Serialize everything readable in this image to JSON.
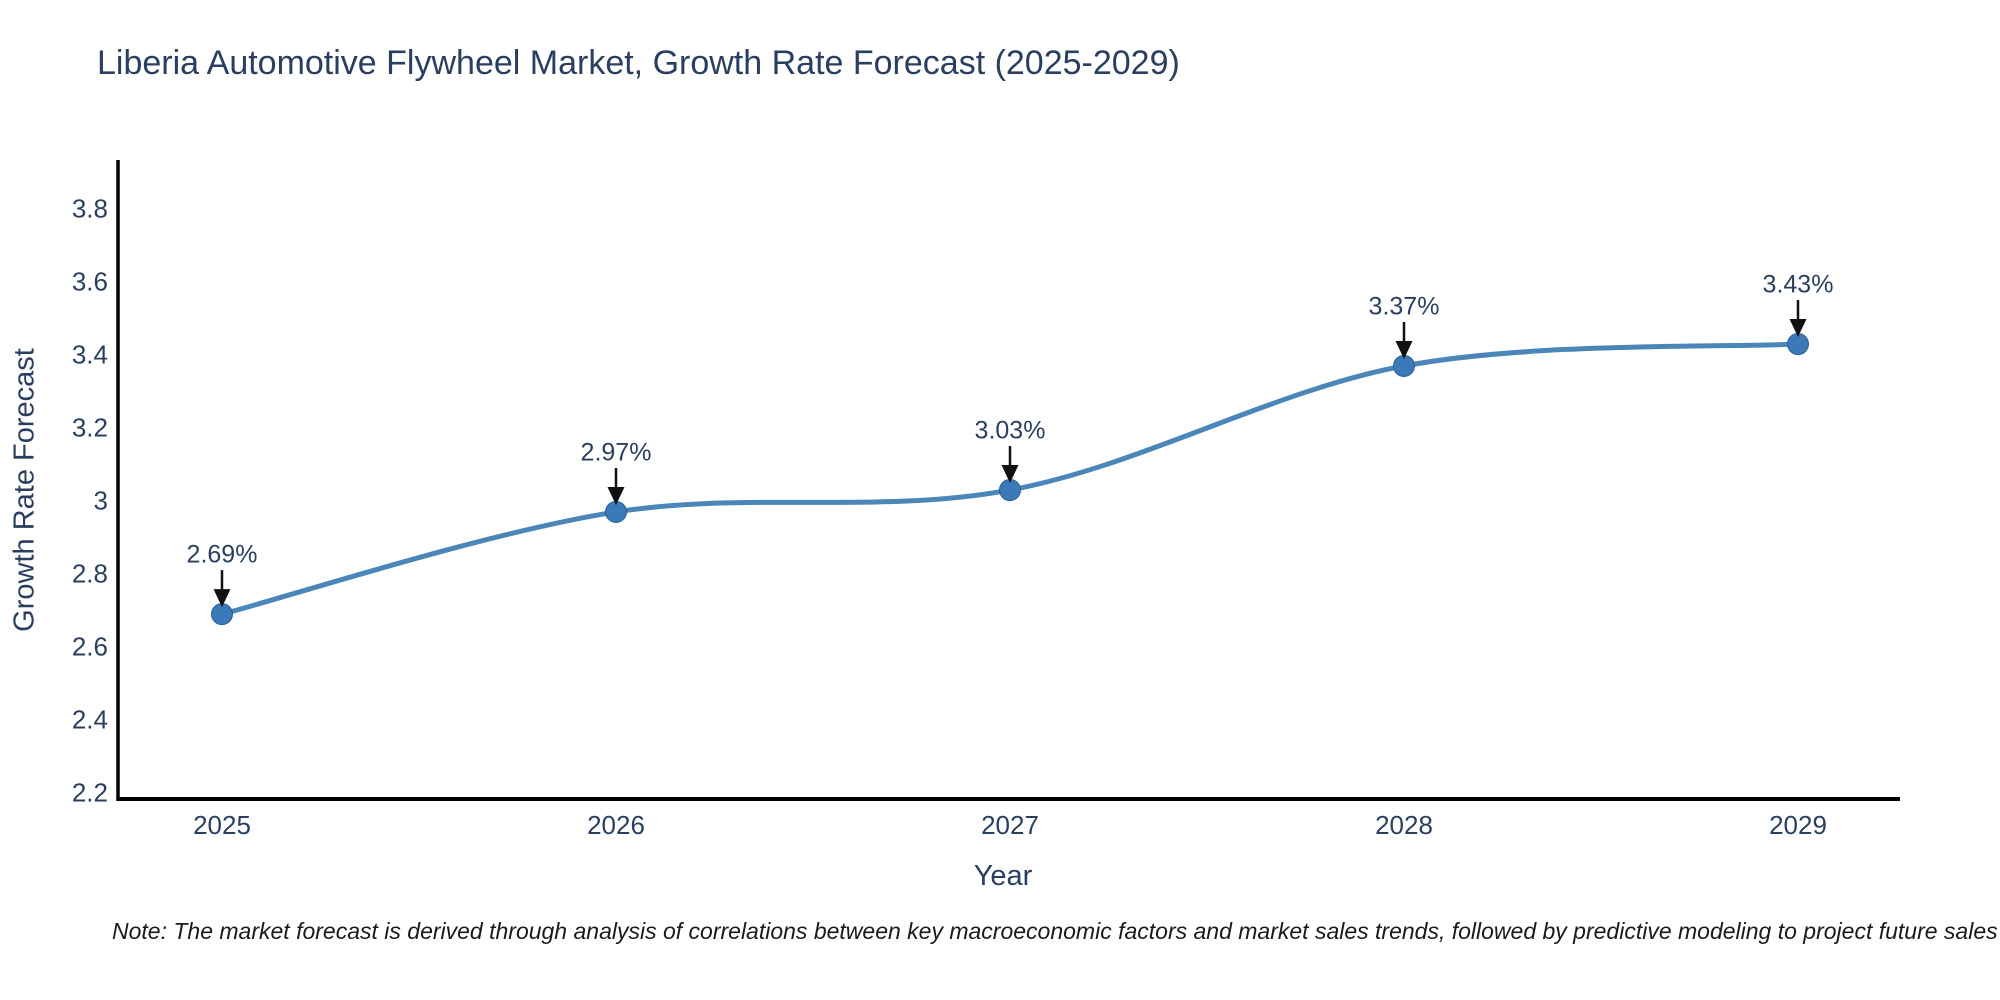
{
  "page": {
    "background": "#ffffff",
    "note": "Note: The market forecast is derived through analysis of correlations between key macroeconomic factors and market sales trends, followed by predictive modeling to project future sales"
  },
  "chart_data": {
    "type": "line",
    "title": "Liberia Automotive Flywheel Market, Growth Rate Forecast (2025-2029)",
    "xlabel": "Year",
    "ylabel": "Growth Rate Forecast",
    "x": [
      2025,
      2026,
      2027,
      2028,
      2029
    ],
    "x_tick_labels": [
      "2025",
      "2026",
      "2027",
      "2028",
      "2029"
    ],
    "values": [
      2.69,
      2.97,
      3.03,
      3.37,
      3.43
    ],
    "point_labels": [
      "2.69%",
      "2.97%",
      "3.03%",
      "3.37%",
      "3.43%"
    ],
    "y_ticks": [
      3.8,
      3.6,
      3.4,
      3.2,
      3,
      2.8,
      2.6,
      2.4,
      2.2
    ],
    "y_tick_labels": [
      "3.8",
      "3.6",
      "3.4",
      "3.2",
      "3",
      "2.8",
      "2.6",
      "2.4",
      "2.2"
    ],
    "ylim": [
      2.18,
      3.93
    ],
    "line_shape": "spline",
    "grid": false,
    "legend": "none",
    "markers": true,
    "annotations_have_arrows": true,
    "line_color": "#4a86b8",
    "marker_color": "#3b79b8",
    "marker_edge_color": "#2a6099",
    "axis_color": "#000000",
    "text_color": "#2a3f5f",
    "arrow_color": "#111111"
  }
}
